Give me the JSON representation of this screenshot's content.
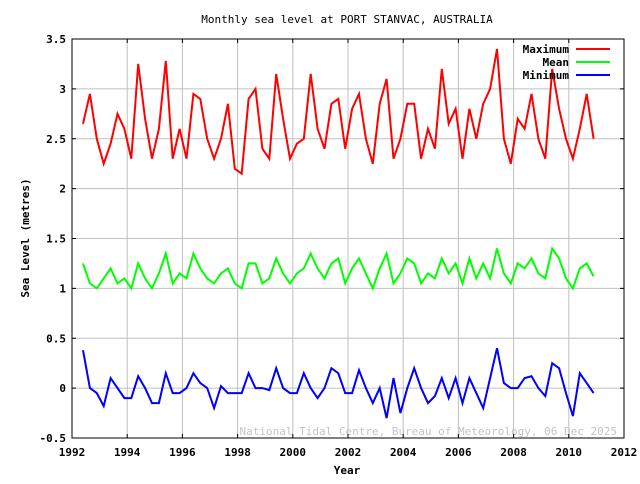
{
  "chart_data": {
    "type": "line",
    "title": "Monthly sea level at PORT STANVAC, AUSTRALIA",
    "xlabel": "Year",
    "ylabel": "Sea Level (metres)",
    "xlim": [
      1992,
      2012
    ],
    "ylim": [
      -0.5,
      3.5
    ],
    "xticks": [
      "1992",
      "1994",
      "1996",
      "1998",
      "2000",
      "2002",
      "2004",
      "2006",
      "2008",
      "2010",
      "2012"
    ],
    "yticks": [
      "-0.5",
      "0",
      "0.5",
      "1",
      "1.5",
      "2",
      "2.5",
      "3",
      "3.5"
    ],
    "grid": true,
    "legend_position": "top-right",
    "annotation": "National Tidal Centre, Bureau of Meteorology, 06 Dec 2025",
    "x": [
      1992.4,
      1992.65,
      1992.9,
      1993.15,
      1993.4,
      1993.65,
      1993.9,
      1994.15,
      1994.4,
      1994.65,
      1994.9,
      1995.15,
      1995.4,
      1995.65,
      1995.9,
      1996.15,
      1996.4,
      1996.65,
      1996.9,
      1997.15,
      1997.4,
      1997.65,
      1997.9,
      1998.15,
      1998.4,
      1998.65,
      1998.9,
      1999.15,
      1999.4,
      1999.65,
      1999.9,
      2000.15,
      2000.4,
      2000.65,
      2000.9,
      2001.15,
      2001.4,
      2001.65,
      2001.9,
      2002.15,
      2002.4,
      2002.65,
      2002.9,
      2003.15,
      2003.4,
      2003.65,
      2003.9,
      2004.15,
      2004.4,
      2004.65,
      2004.9,
      2005.15,
      2005.4,
      2005.65,
      2005.9,
      2006.15,
      2006.4,
      2006.65,
      2006.9,
      2007.15,
      2007.4,
      2007.65,
      2007.9,
      2008.15,
      2008.4,
      2008.65,
      2008.9,
      2009.15,
      2009.4,
      2009.65,
      2009.9,
      2010.15,
      2010.4,
      2010.65,
      2010.9
    ],
    "series": [
      {
        "name": "Maximum",
        "color": "#ff0000",
        "values": [
          2.65,
          2.95,
          2.5,
          2.25,
          2.45,
          2.75,
          2.6,
          2.3,
          3.25,
          2.7,
          2.3,
          2.6,
          3.28,
          2.3,
          2.6,
          2.3,
          2.95,
          2.9,
          2.5,
          2.3,
          2.5,
          2.85,
          2.2,
          2.15,
          2.9,
          3.0,
          2.4,
          2.3,
          3.15,
          2.7,
          2.3,
          2.45,
          2.5,
          3.15,
          2.6,
          2.4,
          2.85,
          2.9,
          2.4,
          2.8,
          2.95,
          2.5,
          2.25,
          2.85,
          3.1,
          2.3,
          2.5,
          2.85,
          2.85,
          2.3,
          2.6,
          2.4,
          3.2,
          2.65,
          2.8,
          2.3,
          2.8,
          2.5,
          2.85,
          3.0,
          3.4,
          2.5,
          2.25,
          2.7,
          2.6,
          2.95,
          2.5,
          2.3,
          3.2,
          2.8,
          2.5,
          2.3,
          2.6,
          2.95,
          2.5
        ]
      },
      {
        "name": "Mean",
        "color": "#00ff00",
        "values": [
          1.25,
          1.05,
          1.0,
          1.1,
          1.2,
          1.05,
          1.1,
          1.0,
          1.25,
          1.1,
          1.0,
          1.15,
          1.35,
          1.05,
          1.15,
          1.1,
          1.35,
          1.2,
          1.1,
          1.05,
          1.15,
          1.2,
          1.05,
          1.0,
          1.25,
          1.25,
          1.05,
          1.1,
          1.3,
          1.15,
          1.05,
          1.15,
          1.2,
          1.35,
          1.2,
          1.1,
          1.25,
          1.3,
          1.05,
          1.2,
          1.3,
          1.15,
          1.0,
          1.2,
          1.35,
          1.05,
          1.15,
          1.3,
          1.25,
          1.05,
          1.15,
          1.1,
          1.3,
          1.15,
          1.25,
          1.05,
          1.3,
          1.1,
          1.25,
          1.1,
          1.4,
          1.15,
          1.05,
          1.25,
          1.2,
          1.3,
          1.15,
          1.1,
          1.4,
          1.3,
          1.1,
          1.0,
          1.2,
          1.25,
          1.12
        ]
      },
      {
        "name": "Minimum",
        "color": "#0000ff",
        "values": [
          0.38,
          0.0,
          -0.05,
          -0.18,
          0.1,
          0.0,
          -0.1,
          -0.1,
          0.12,
          0.0,
          -0.15,
          -0.15,
          0.15,
          -0.05,
          -0.05,
          0.0,
          0.15,
          0.05,
          0.0,
          -0.2,
          0.02,
          -0.05,
          -0.05,
          -0.05,
          0.15,
          0.0,
          0.0,
          -0.02,
          0.2,
          0.0,
          -0.05,
          -0.05,
          0.15,
          0.0,
          -0.1,
          0.0,
          0.2,
          0.15,
          -0.05,
          -0.05,
          0.18,
          0.0,
          -0.15,
          0.0,
          -0.3,
          0.1,
          -0.25,
          0.0,
          0.2,
          0.0,
          -0.15,
          -0.08,
          0.1,
          -0.1,
          0.1,
          -0.15,
          0.1,
          -0.05,
          -0.2,
          0.1,
          0.4,
          0.05,
          0.0,
          0.0,
          0.1,
          0.12,
          0.0,
          -0.08,
          0.25,
          0.2,
          -0.05,
          -0.28,
          0.15,
          0.05,
          -0.05
        ]
      }
    ]
  }
}
